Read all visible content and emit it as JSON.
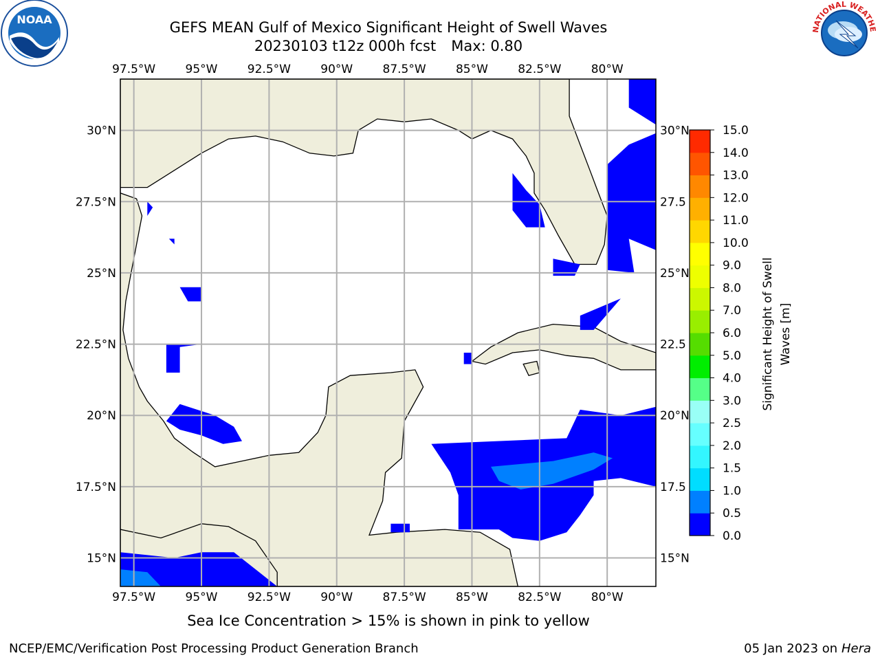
{
  "title": {
    "line1": "GEFS MEAN Gulf of Mexico Significant Height of Swell Waves",
    "line2a": "20230103 t12z 000h fcst",
    "line2b": "Max: 0.80"
  },
  "caption": "Sea Ice Concentration > 15% is shown in pink to yellow",
  "footer": {
    "left": "NCEP/EMC/Verification Post Processing Product Generation Branch",
    "right_date": "05 Jan 2023 on",
    "right_host": "Hera"
  },
  "logos": {
    "noaa": {
      "text": "NOAA",
      "ring_text": "NATIONAL OCEANIC AND ATMOSPHERIC ADMINISTRATION · U.S. DEPARTMENT OF COMMERCE"
    },
    "nws": {
      "ring_text": "NATIONAL WEATHER SERVICE"
    }
  },
  "map": {
    "extent": {
      "lon_min": -98.0,
      "lon_max": -78.2,
      "lat_min": 14.0,
      "lat_max": 31.8
    },
    "lon_ticks": [
      {
        "lon": -97.5,
        "label": "97.5°W"
      },
      {
        "lon": -95,
        "label": "95°W"
      },
      {
        "lon": -92.5,
        "label": "92.5°W"
      },
      {
        "lon": -90,
        "label": "90°W"
      },
      {
        "lon": -87.5,
        "label": "87.5°W"
      },
      {
        "lon": -85,
        "label": "85°W"
      },
      {
        "lon": -82.5,
        "label": "82.5°W"
      },
      {
        "lon": -80,
        "label": "80°W"
      }
    ],
    "lat_ticks": [
      {
        "lat": 30,
        "label": "30°N"
      },
      {
        "lat": 27.5,
        "label": "27.5°N"
      },
      {
        "lat": 25,
        "label": "25°N"
      },
      {
        "lat": 22.5,
        "label": "22.5°N"
      },
      {
        "lat": 20,
        "label": "20°N"
      },
      {
        "lat": 17.5,
        "label": "17.5°N"
      },
      {
        "lat": 15,
        "label": "15°N"
      }
    ],
    "right_lat_labels": [
      "30°N",
      "27.5",
      "25°N",
      "22.5",
      "20°N",
      "17.5",
      "15°N"
    ],
    "colors": {
      "land": "#efeedc",
      "ocean": "#ffffff",
      "grid": "#b0b0b0",
      "coast": "#000000"
    },
    "swell_regions": [
      {
        "level": "0.0-0.5",
        "color": "#0000ff",
        "points": [
          [
            -98,
            15.2
          ],
          [
            -96,
            15.0
          ],
          [
            -95,
            15.2
          ],
          [
            -93.8,
            15.2
          ],
          [
            -92.2,
            14.0
          ],
          [
            -98,
            14.0
          ]
        ]
      },
      {
        "level": "0.5-1.0",
        "color": "#0080ff",
        "points": [
          [
            -98,
            14.6
          ],
          [
            -97,
            14.5
          ],
          [
            -96.5,
            14.0
          ],
          [
            -98,
            14.0
          ]
        ]
      },
      {
        "level": "0.0-0.5",
        "color": "#0000ff",
        "points": [
          [
            -86.5,
            19.0
          ],
          [
            -81.5,
            19.2
          ],
          [
            -81,
            20.2
          ],
          [
            -79.5,
            20.0
          ],
          [
            -78.2,
            20.3
          ],
          [
            -78.2,
            17.5
          ],
          [
            -79.5,
            17.8
          ],
          [
            -80.5,
            17.7
          ],
          [
            -80.5,
            17.2
          ],
          [
            -81,
            16.5
          ],
          [
            -81.5,
            15.9
          ],
          [
            -82.5,
            15.6
          ],
          [
            -83.5,
            15.7
          ],
          [
            -84,
            16.0
          ],
          [
            -85.5,
            16.0
          ],
          [
            -85.5,
            17.2
          ],
          [
            -85.8,
            18.0
          ]
        ]
      },
      {
        "level": "0.5-1.0",
        "color": "#0080ff",
        "points": [
          [
            -84.3,
            18.2
          ],
          [
            -82,
            18.4
          ],
          [
            -80.5,
            18.7
          ],
          [
            -79.8,
            18.5
          ],
          [
            -80.5,
            18.1
          ],
          [
            -82,
            17.6
          ],
          [
            -83.2,
            17.4
          ],
          [
            -84.0,
            17.7
          ]
        ]
      },
      {
        "level": "0.0-0.5",
        "color": "#0000ff",
        "points": [
          [
            -80.0,
            28.8
          ],
          [
            -79.2,
            29.5
          ],
          [
            -78.2,
            29.9
          ],
          [
            -78.2,
            25.8
          ],
          [
            -79.2,
            26.2
          ],
          [
            -79.0,
            25.0
          ],
          [
            -80.0,
            25.1
          ]
        ]
      },
      {
        "level": "0.0-0.5",
        "color": "#0000ff",
        "points": [
          [
            -79.2,
            31.8
          ],
          [
            -78.2,
            31.8
          ],
          [
            -78.2,
            30.2
          ],
          [
            -79.2,
            30.8
          ]
        ]
      },
      {
        "level": "0.0-0.5",
        "color": "#0000ff",
        "points": [
          [
            -83.5,
            28.5
          ],
          [
            -83.0,
            27.9
          ],
          [
            -82.5,
            27.4
          ],
          [
            -82.3,
            26.6
          ],
          [
            -83.0,
            26.6
          ],
          [
            -83.5,
            27.2
          ]
        ]
      },
      {
        "level": "0.0-0.5",
        "color": "#0000ff",
        "points": [
          [
            -82.0,
            25.5
          ],
          [
            -81.0,
            25.3
          ],
          [
            -81.2,
            24.9
          ],
          [
            -82.0,
            24.9
          ]
        ]
      },
      {
        "level": "0.0-0.5",
        "color": "#0000ff",
        "points": [
          [
            -81,
            23.5
          ],
          [
            -79.5,
            24.1
          ],
          [
            -80.5,
            23.0
          ],
          [
            -81,
            23.0
          ]
        ]
      },
      {
        "level": "0.0-0.5",
        "color": "#0000ff",
        "points": [
          [
            -96.3,
            22.5
          ],
          [
            -95.0,
            22.5
          ],
          [
            -95.8,
            22.4
          ],
          [
            -95.8,
            21.5
          ],
          [
            -96.3,
            21.5
          ]
        ]
      },
      {
        "level": "0.0-0.5",
        "color": "#0000ff",
        "points": [
          [
            -96.3,
            19.8
          ],
          [
            -95.8,
            20.4
          ],
          [
            -94.5,
            20.0
          ],
          [
            -93.8,
            19.6
          ],
          [
            -93.5,
            19.1
          ],
          [
            -94.2,
            19.0
          ],
          [
            -95.0,
            19.3
          ],
          [
            -95.8,
            19.5
          ]
        ]
      },
      {
        "level": "0.0-0.5",
        "color": "#0000ff",
        "points": [
          [
            -95.8,
            24.5
          ],
          [
            -95.0,
            24.5
          ],
          [
            -95.0,
            24.0
          ],
          [
            -95.5,
            24.0
          ]
        ]
      },
      {
        "level": "0.0-0.5",
        "color": "#0000ff",
        "points": [
          [
            -97.0,
            27.5
          ],
          [
            -96.8,
            27.3
          ],
          [
            -97.0,
            27.0
          ]
        ]
      },
      {
        "level": "0.0-0.5",
        "color": "#0000ff",
        "points": [
          [
            -96.2,
            26.2
          ],
          [
            -96.0,
            26.2
          ],
          [
            -96.0,
            26.0
          ]
        ]
      },
      {
        "level": "0.0-0.5",
        "color": "#0000ff",
        "points": [
          [
            -88.0,
            15.9
          ],
          [
            -87.3,
            15.9
          ],
          [
            -87.3,
            16.2
          ],
          [
            -88.0,
            16.2
          ]
        ]
      },
      {
        "level": "0.0-0.5",
        "color": "#0000ff",
        "points": [
          [
            -85.0,
            22.2
          ],
          [
            -85.0,
            21.8
          ],
          [
            -85.3,
            21.8
          ],
          [
            -85.3,
            22.2
          ]
        ]
      }
    ],
    "land_regions": [
      {
        "name": "gulf-coast-mainland",
        "points": [
          [
            -98,
            31.8
          ],
          [
            -98,
            27.8
          ],
          [
            -97.4,
            27.6
          ],
          [
            -97.2,
            27.0
          ],
          [
            -97.4,
            26.0
          ],
          [
            -97.6,
            25.0
          ],
          [
            -97.8,
            24.0
          ],
          [
            -97.9,
            23.0
          ],
          [
            -97.7,
            22.0
          ],
          [
            -97.3,
            21.0
          ],
          [
            -97.0,
            20.5
          ],
          [
            -96.4,
            19.8
          ],
          [
            -96.0,
            19.2
          ],
          [
            -95.3,
            18.7
          ],
          [
            -94.5,
            18.2
          ],
          [
            -93.5,
            18.4
          ],
          [
            -92.5,
            18.6
          ],
          [
            -91.4,
            18.7
          ],
          [
            -90.7,
            19.4
          ],
          [
            -90.4,
            20.0
          ],
          [
            -90.3,
            21.0
          ],
          [
            -89.5,
            21.4
          ],
          [
            -88.0,
            21.5
          ],
          [
            -87.1,
            21.6
          ],
          [
            -86.8,
            21.0
          ],
          [
            -87.5,
            19.8
          ],
          [
            -87.6,
            18.5
          ],
          [
            -88.2,
            18.0
          ],
          [
            -88.3,
            17.0
          ],
          [
            -88.8,
            15.8
          ],
          [
            -87.8,
            15.9
          ],
          [
            -86.0,
            16.0
          ],
          [
            -84.7,
            15.9
          ],
          [
            -83.6,
            15.3
          ],
          [
            -83.3,
            14.0
          ],
          [
            -98,
            14.0
          ],
          [
            -98,
            16.0
          ],
          [
            -96.5,
            15.7
          ],
          [
            -95.0,
            16.2
          ],
          [
            -94.0,
            16.1
          ],
          [
            -93.0,
            15.6
          ],
          [
            -92.2,
            14.5
          ],
          [
            -92.2,
            14.0
          ],
          [
            -98,
            14.0
          ]
        ]
      },
      {
        "name": "us-gulf-coast",
        "points": [
          [
            -98,
            31.8
          ],
          [
            -98,
            28.0
          ],
          [
            -97.0,
            28.0
          ],
          [
            -96.0,
            28.6
          ],
          [
            -95.0,
            29.2
          ],
          [
            -94.0,
            29.7
          ],
          [
            -93.0,
            29.8
          ],
          [
            -92.0,
            29.6
          ],
          [
            -91.0,
            29.2
          ],
          [
            -90.1,
            29.1
          ],
          [
            -89.4,
            29.2
          ],
          [
            -89.2,
            30.0
          ],
          [
            -88.5,
            30.4
          ],
          [
            -87.5,
            30.3
          ],
          [
            -86.5,
            30.4
          ],
          [
            -85.5,
            30.0
          ],
          [
            -85.0,
            29.7
          ],
          [
            -84.3,
            30.0
          ],
          [
            -83.5,
            29.7
          ],
          [
            -83.0,
            29.1
          ],
          [
            -82.7,
            28.5
          ],
          [
            -82.7,
            27.8
          ],
          [
            -82.3,
            27.2
          ],
          [
            -81.8,
            26.3
          ],
          [
            -81.2,
            25.3
          ],
          [
            -80.4,
            25.3
          ],
          [
            -80.1,
            26.0
          ],
          [
            -80.0,
            27.0
          ],
          [
            -80.4,
            28.0
          ],
          [
            -80.6,
            28.5
          ],
          [
            -81.0,
            29.5
          ],
          [
            -81.4,
            30.5
          ],
          [
            -81.4,
            31.8
          ]
        ]
      },
      {
        "name": "cuba",
        "points": [
          [
            -85.0,
            21.9
          ],
          [
            -84.3,
            22.4
          ],
          [
            -83.3,
            22.9
          ],
          [
            -82.0,
            23.2
          ],
          [
            -80.5,
            23.1
          ],
          [
            -79.5,
            22.6
          ],
          [
            -78.2,
            22.2
          ],
          [
            -78.2,
            21.6
          ],
          [
            -79.5,
            21.6
          ],
          [
            -80.5,
            22.0
          ],
          [
            -81.5,
            22.1
          ],
          [
            -82.5,
            22.3
          ],
          [
            -83.5,
            22.2
          ],
          [
            -84.5,
            21.8
          ]
        ]
      },
      {
        "name": "isla-juventud",
        "points": [
          [
            -83.1,
            21.8
          ],
          [
            -82.6,
            21.9
          ],
          [
            -82.5,
            21.5
          ],
          [
            -82.9,
            21.4
          ]
        ]
      }
    ]
  },
  "colorbar": {
    "label_line1": "Significant Height of Swell",
    "label_line2": "Waves [m]",
    "ticks": [
      "0.0",
      "0.5",
      "1.0",
      "1.5",
      "2.0",
      "2.5",
      "3.0",
      "4.0",
      "5.0",
      "6.0",
      "7.0",
      "8.0",
      "9.0",
      "10.0",
      "11.0",
      "12.0",
      "13.0",
      "14.0",
      "15.0"
    ],
    "colors": [
      "#0000ff",
      "#0080ff",
      "#00ddff",
      "#33f6ff",
      "#66ffff",
      "#99fff6",
      "#55ff88",
      "#00ee00",
      "#55dd00",
      "#99ee00",
      "#ccf700",
      "#eeff00",
      "#ffff00",
      "#ffd700",
      "#ffb000",
      "#ff8800",
      "#ff5500",
      "#ff2a00",
      "#ff0000"
    ]
  }
}
